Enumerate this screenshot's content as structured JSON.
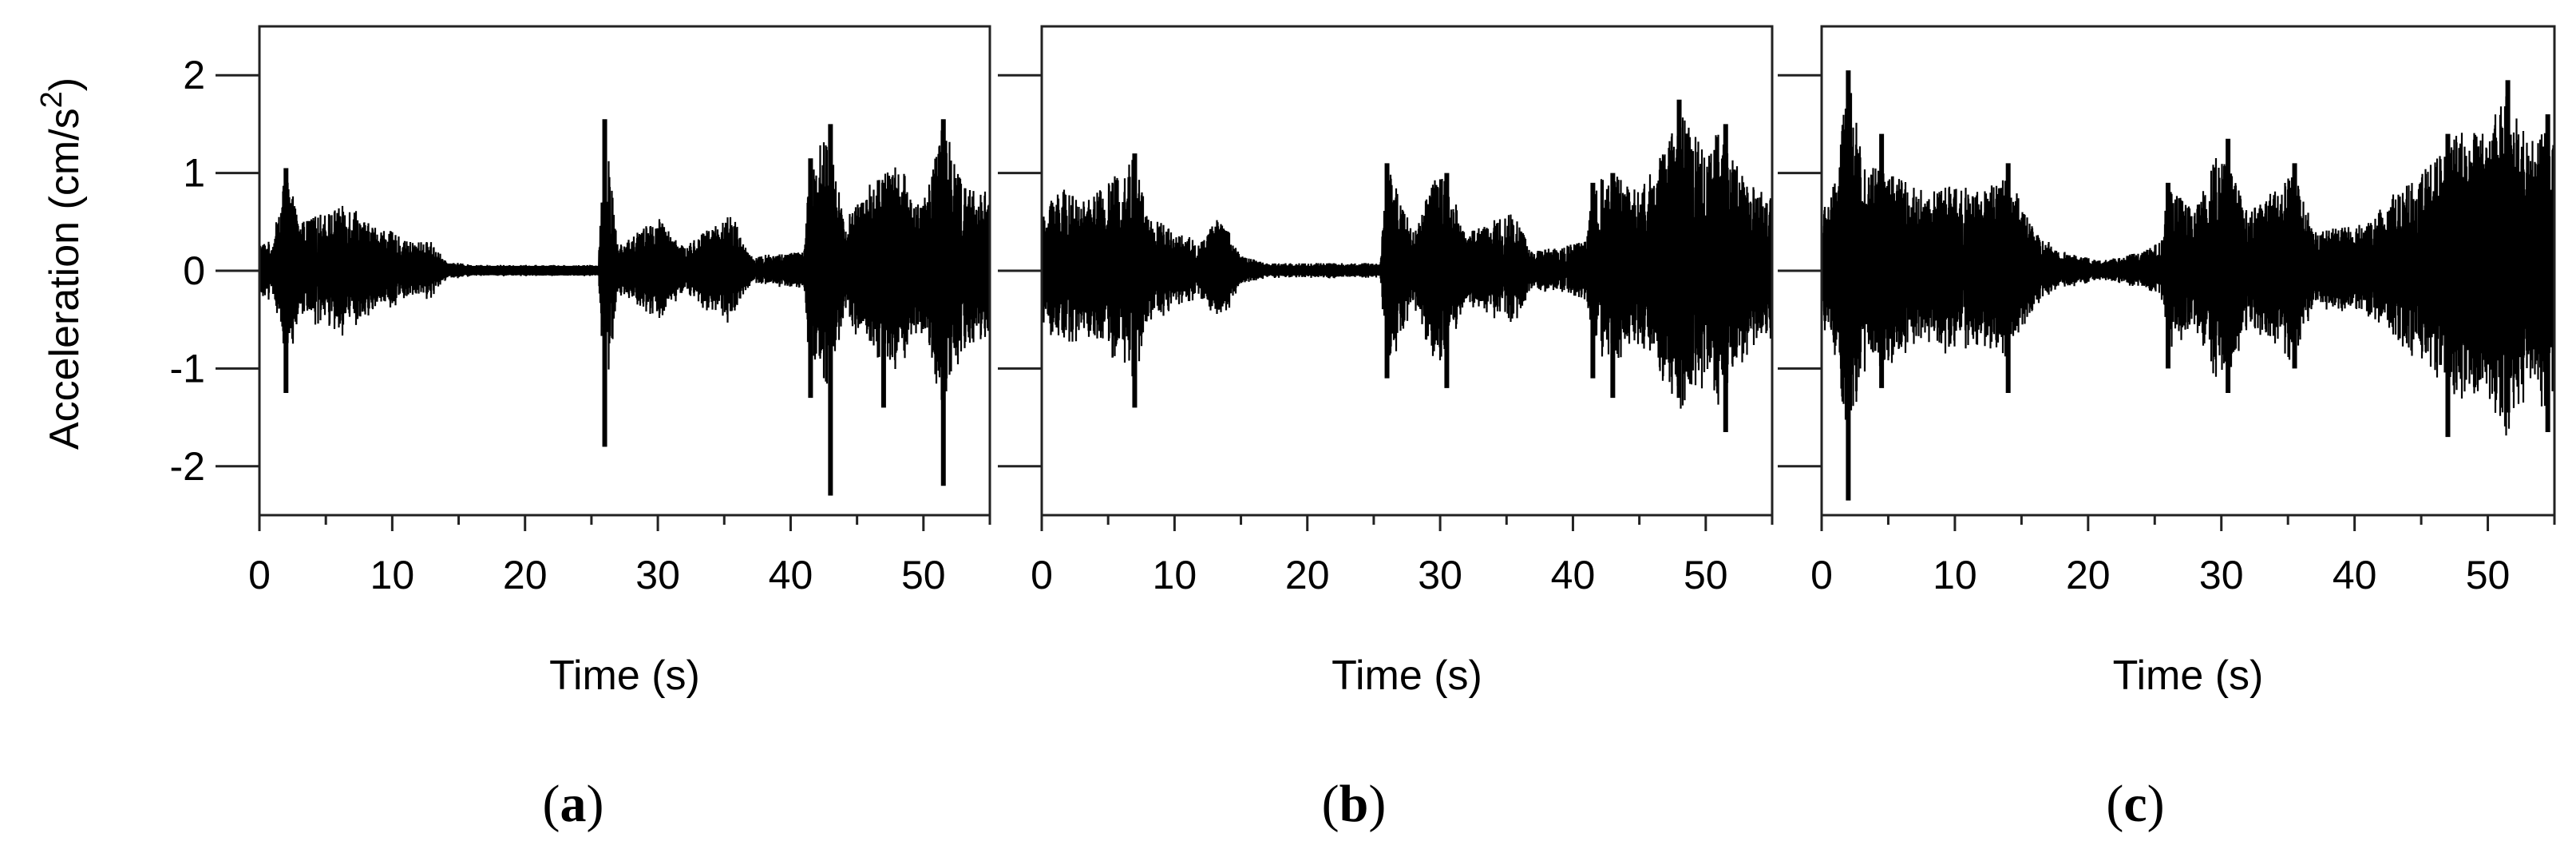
{
  "chart_data": [
    {
      "type": "line",
      "panel_label": "a",
      "xlabel": "Time (s)",
      "ylabel": "Acceleration (cm/s²)",
      "ylabel_main": "Acceleration (cm/s",
      "ylabel_sup": "2",
      "ylabel_close": ")",
      "xlim": [
        0,
        55
      ],
      "ylim": [
        -2.5,
        2.5
      ],
      "xticks": [
        0,
        10,
        20,
        30,
        40,
        50
      ],
      "yticks": [
        2,
        1,
        0,
        -1,
        -2
      ],
      "show_y_tick_labels": true,
      "grid": false,
      "noise_floor": 0.05,
      "envelope": [
        [
          0,
          0.3
        ],
        [
          1,
          0.3
        ],
        [
          2,
          1.05
        ],
        [
          3,
          0.5
        ],
        [
          5,
          0.6
        ],
        [
          7,
          0.7
        ],
        [
          8,
          0.5
        ],
        [
          10,
          0.4
        ],
        [
          11,
          0.3
        ],
        [
          13,
          0.3
        ],
        [
          14,
          0.1
        ],
        [
          16,
          0.06
        ],
        [
          25.5,
          0.06
        ],
        [
          26,
          1.55
        ],
        [
          27,
          0.25
        ],
        [
          30,
          0.55
        ],
        [
          32,
          0.25
        ],
        [
          35.5,
          0.6
        ],
        [
          37,
          0.15
        ],
        [
          41,
          0.2
        ],
        [
          41.5,
          1.15
        ],
        [
          43,
          1.5
        ],
        [
          44,
          0.5
        ],
        [
          46,
          0.9
        ],
        [
          48,
          1.1
        ],
        [
          50,
          0.7
        ],
        [
          51.5,
          1.55
        ],
        [
          53,
          0.9
        ],
        [
          55,
          0.8
        ]
      ],
      "spikes": [
        [
          2,
          1.05,
          -1.25
        ],
        [
          26,
          1.55,
          -1.8
        ],
        [
          41.5,
          1.15,
          -1.3
        ],
        [
          43,
          1.5,
          -2.3
        ],
        [
          51.5,
          1.55,
          -2.2
        ],
        [
          47,
          0.9,
          -1.4
        ]
      ]
    },
    {
      "type": "line",
      "panel_label": "b",
      "xlabel": "Time (s)",
      "ylabel": "",
      "xlim": [
        0,
        55
      ],
      "ylim": [
        -2.5,
        2.5
      ],
      "xticks": [
        0,
        10,
        20,
        30,
        40,
        50
      ],
      "yticks": [
        2,
        1,
        0,
        -1,
        -2
      ],
      "show_y_tick_labels": false,
      "grid": false,
      "noise_floor": 0.05,
      "envelope": [
        [
          0,
          0.5
        ],
        [
          1,
          0.9
        ],
        [
          3,
          0.7
        ],
        [
          5,
          0.9
        ],
        [
          7,
          1.2
        ],
        [
          8,
          0.6
        ],
        [
          10,
          0.4
        ],
        [
          12,
          0.3
        ],
        [
          13.5,
          0.6
        ],
        [
          15,
          0.15
        ],
        [
          17,
          0.08
        ],
        [
          25.5,
          0.08
        ],
        [
          26,
          1.1
        ],
        [
          28,
          0.4
        ],
        [
          30,
          1.1
        ],
        [
          32,
          0.4
        ],
        [
          35.5,
          0.6
        ],
        [
          37,
          0.2
        ],
        [
          41,
          0.3
        ],
        [
          41.5,
          0.9
        ],
        [
          43,
          1.0
        ],
        [
          45,
          0.8
        ],
        [
          47,
          1.3
        ],
        [
          48,
          1.7
        ],
        [
          50,
          1.2
        ],
        [
          51,
          1.5
        ],
        [
          53,
          0.9
        ],
        [
          55,
          0.75
        ]
      ],
      "spikes": [
        [
          7,
          1.2,
          -1.4
        ],
        [
          26,
          1.1,
          -1.1
        ],
        [
          30.5,
          1.0,
          -1.2
        ],
        [
          41.5,
          0.9,
          -1.1
        ],
        [
          43,
          1.0,
          -1.3
        ],
        [
          48,
          1.75,
          -1.3
        ],
        [
          51.5,
          1.5,
          -1.65
        ]
      ]
    },
    {
      "type": "line",
      "panel_label": "c",
      "xlabel": "Time (s)",
      "ylabel": "",
      "xlim": [
        0,
        55
      ],
      "ylim": [
        -2.5,
        2.5
      ],
      "xticks": [
        0,
        10,
        20,
        30,
        40,
        50
      ],
      "yticks": [
        2,
        1,
        0,
        -1,
        -2
      ],
      "show_y_tick_labels": false,
      "grid": false,
      "noise_floor": 0.05,
      "envelope": [
        [
          0,
          0.6
        ],
        [
          1,
          0.9
        ],
        [
          2,
          2.0
        ],
        [
          3,
          1.2
        ],
        [
          5,
          1.0
        ],
        [
          8,
          0.8
        ],
        [
          10,
          0.9
        ],
        [
          12,
          0.8
        ],
        [
          14,
          1.0
        ],
        [
          16,
          0.4
        ],
        [
          18,
          0.2
        ],
        [
          21,
          0.1
        ],
        [
          24,
          0.2
        ],
        [
          25.5,
          0.3
        ],
        [
          26,
          0.9
        ],
        [
          28,
          0.6
        ],
        [
          30,
          1.3
        ],
        [
          32,
          0.6
        ],
        [
          35.5,
          1.0
        ],
        [
          37,
          0.4
        ],
        [
          41,
          0.5
        ],
        [
          43,
          0.8
        ],
        [
          45,
          1.0
        ],
        [
          47,
          1.3
        ],
        [
          48,
          1.5
        ],
        [
          50,
          1.4
        ],
        [
          51.5,
          1.95
        ],
        [
          53,
          1.3
        ],
        [
          55,
          1.5
        ]
      ],
      "spikes": [
        [
          2,
          2.05,
          -2.35
        ],
        [
          4.5,
          1.4,
          -1.2
        ],
        [
          14,
          1.1,
          -1.25
        ],
        [
          26,
          0.9,
          -1.0
        ],
        [
          30.5,
          1.35,
          -1.25
        ],
        [
          35.5,
          1.1,
          -1.0
        ],
        [
          47,
          1.4,
          -1.7
        ],
        [
          51.5,
          1.95,
          -1.45
        ],
        [
          54.5,
          1.6,
          -1.65
        ]
      ]
    }
  ]
}
